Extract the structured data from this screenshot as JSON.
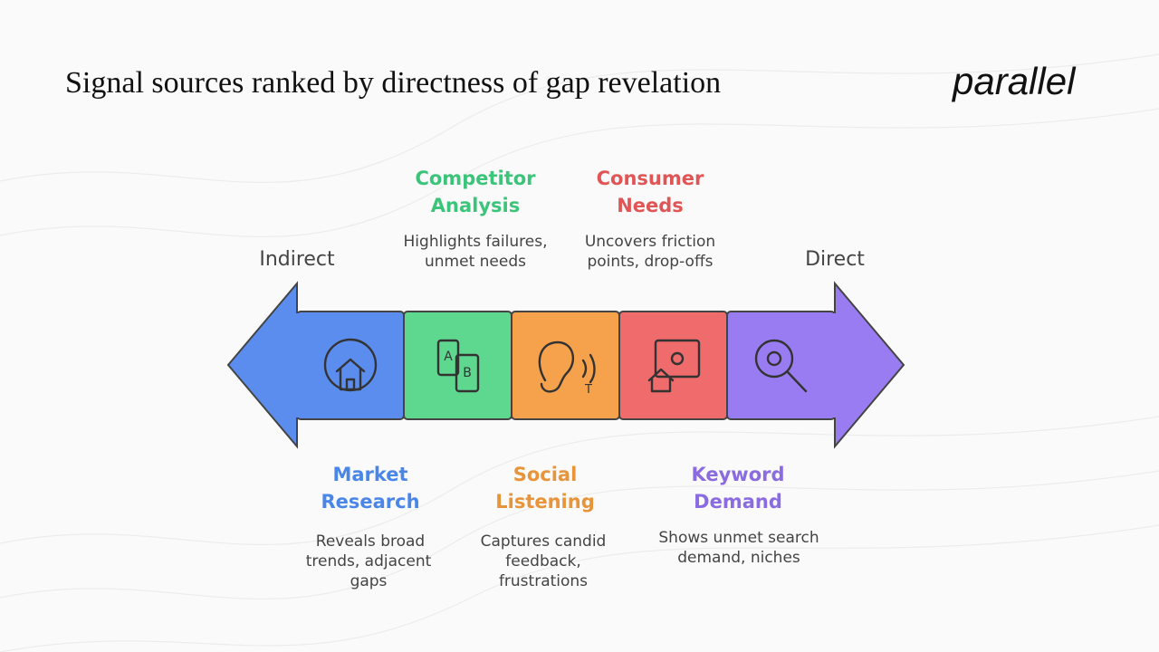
{
  "header": {
    "title": "Signal sources ranked by directness of gap revelation",
    "logo": "parallel"
  },
  "scale": {
    "left": "Indirect",
    "right": "Direct"
  },
  "items": [
    {
      "title": [
        "Market",
        "Research"
      ],
      "description": [
        "Reveals broad",
        "trends, adjacent",
        "gaps"
      ]
    },
    {
      "title": [
        "Competitor",
        "Analysis"
      ],
      "description": [
        "Highlights failures,",
        "unmet needs"
      ]
    },
    {
      "title": [
        "Social",
        "Listening"
      ],
      "description": [
        "Captures candid",
        "feedback,",
        "frustrations"
      ]
    },
    {
      "title": [
        "Consumer",
        "Needs"
      ],
      "description": [
        "Uncovers friction",
        "points, drop-offs"
      ]
    },
    {
      "title": [
        "Keyword",
        "Demand"
      ],
      "description": [
        "Shows unmet search",
        "demand, niches"
      ]
    }
  ]
}
